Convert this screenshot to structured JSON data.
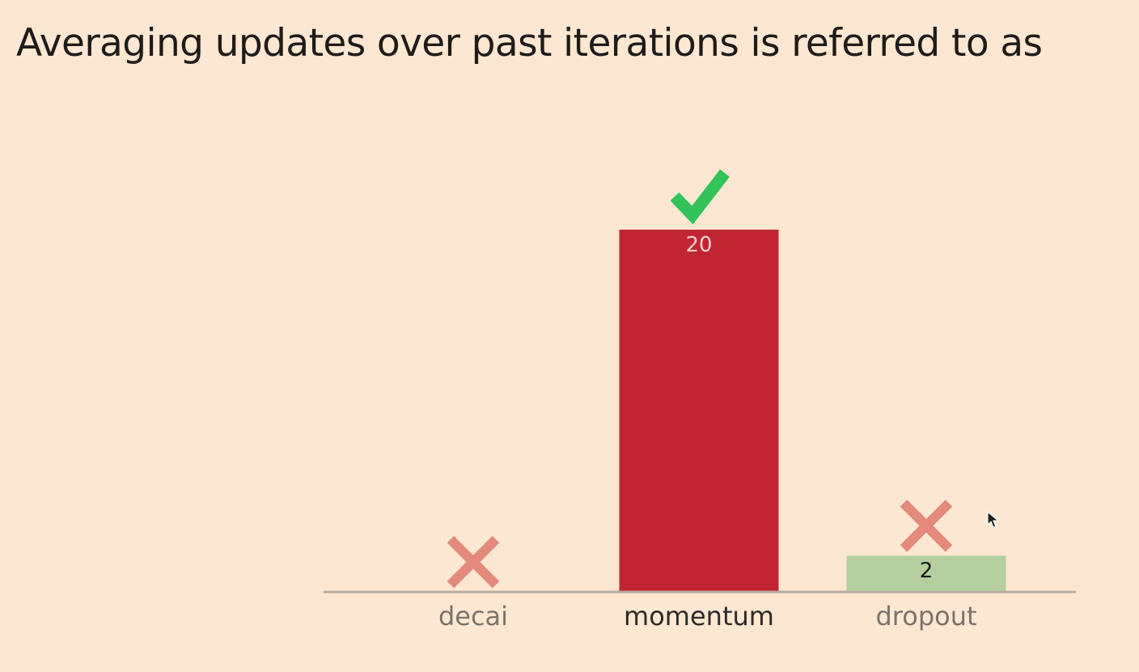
{
  "question": "Averaging updates over past iterations is referred to as",
  "chart_data": {
    "type": "bar",
    "categories": [
      "decai",
      "momentum",
      "dropout"
    ],
    "values": [
      0,
      20,
      2
    ],
    "correct": [
      false,
      true,
      false
    ],
    "title": "Averaging updates over past iterations is referred to as",
    "xlabel": "",
    "ylabel": "",
    "ylim": [
      0,
      22
    ],
    "grid": false,
    "legend": "none"
  },
  "colors": {
    "background": "#fce7d2",
    "correct_bar": "#c12532",
    "incorrect_bar": "#b5cf9f",
    "correct_mark": "#34c25a",
    "incorrect_mark": "#e38a7b",
    "baseline": "#b8aca0",
    "label_correct": "#2e2a27",
    "label_incorrect": "#7b736c",
    "value_on_correct": "#f3d0d0",
    "value_on_incorrect": "#1a1a1a"
  },
  "icons": {
    "correct": "check-icon",
    "incorrect": "cross-icon",
    "cursor": "cursor-pointer-icon"
  }
}
